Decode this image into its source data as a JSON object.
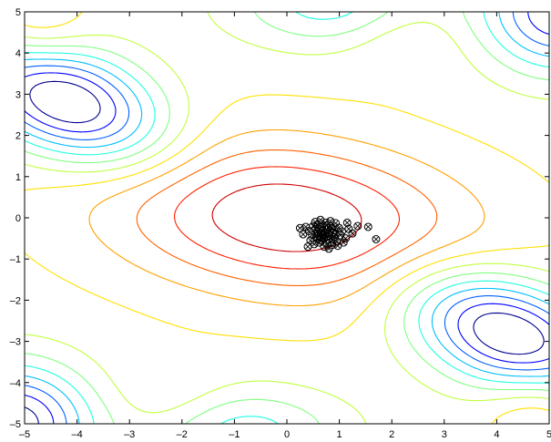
{
  "chart_data": {
    "type": "contour",
    "title": "",
    "xlabel": "",
    "ylabel": "",
    "xlim": [
      -5,
      5
    ],
    "ylim": [
      -5,
      5
    ],
    "grid": false,
    "x_ticks": [
      "-5",
      "-4",
      "-3",
      "-2",
      "-1",
      "0",
      "1",
      "2",
      "3",
      "4",
      "5"
    ],
    "y_ticks": [
      "5",
      "4",
      "3",
      "2",
      "1",
      "0",
      "-1",
      "-2",
      "-3",
      "-4",
      "-5"
    ],
    "x_tick_values": [
      -5,
      -4,
      -3,
      -2,
      -1,
      0,
      1,
      2,
      3,
      4,
      5
    ],
    "y_tick_values": [
      5,
      4,
      3,
      2,
      1,
      0,
      -1,
      -2,
      -3,
      -4,
      -5
    ],
    "contour_levels": [
      -2.0,
      -1.7,
      -1.4,
      -1.1,
      -0.8,
      -0.5,
      -0.2,
      0.1,
      0.4,
      0.7,
      1.0,
      1.3,
      1.6
    ],
    "colormap": [
      "#00008f",
      "#0000ff",
      "#0060ff",
      "#00bfff",
      "#20ffdf",
      "#80ff80",
      "#c0ff40",
      "#ffe000",
      "#ffa000",
      "#ff6000",
      "#ff2000",
      "#d00000",
      "#800000"
    ],
    "samples": {
      "marker": "circle-x",
      "color": "#000000",
      "points": [
        [
          0.72,
          -0.39
        ],
        [
          0.55,
          -0.28
        ],
        [
          0.91,
          -0.47
        ],
        [
          0.63,
          -0.55
        ],
        [
          0.84,
          -0.21
        ],
        [
          0.48,
          -0.41
        ],
        [
          1.05,
          -0.33
        ],
        [
          0.77,
          -0.62
        ],
        [
          0.59,
          -0.17
        ],
        [
          0.95,
          -0.58
        ],
        [
          0.68,
          -0.3
        ],
        [
          0.81,
          -0.44
        ],
        [
          0.42,
          -0.32
        ],
        [
          1.12,
          -0.5
        ],
        [
          0.73,
          -0.12
        ],
        [
          0.52,
          -0.64
        ],
        [
          0.88,
          -0.36
        ],
        [
          0.66,
          -0.48
        ],
        [
          0.99,
          -0.24
        ],
        [
          0.6,
          -0.37
        ],
        [
          0.79,
          -0.53
        ],
        [
          0.36,
          -0.22
        ],
        [
          1.18,
          -0.27
        ],
        [
          0.71,
          -0.7
        ],
        [
          0.56,
          -0.46
        ],
        [
          0.93,
          -0.13
        ],
        [
          0.75,
          -0.28
        ],
        [
          0.45,
          -0.55
        ],
        [
          1.02,
          -0.42
        ],
        [
          0.64,
          -0.05
        ],
        [
          0.86,
          -0.66
        ],
        [
          0.58,
          -0.34
        ],
        [
          0.9,
          -0.3
        ],
        [
          0.69,
          -0.42
        ],
        [
          0.31,
          -0.4
        ],
        [
          1.25,
          -0.38
        ],
        [
          0.76,
          -0.18
        ],
        [
          0.5,
          -0.2
        ],
        [
          0.97,
          -0.68
        ],
        [
          0.62,
          -0.6
        ],
        [
          0.83,
          -0.08
        ],
        [
          0.7,
          -0.5
        ],
        [
          1.35,
          -0.2
        ],
        [
          0.25,
          -0.25
        ],
        [
          0.8,
          -0.75
        ],
        [
          0.54,
          -0.1
        ],
        [
          1.08,
          -0.6
        ],
        [
          0.67,
          -0.22
        ],
        [
          0.87,
          -0.52
        ],
        [
          0.74,
          -0.35
        ],
        [
          1.7,
          -0.52
        ],
        [
          1.55,
          -0.22
        ],
        [
          0.4,
          -0.7
        ],
        [
          1.15,
          -0.12
        ],
        [
          0.92,
          -0.4
        ],
        [
          0.61,
          -0.27
        ],
        [
          0.78,
          -0.46
        ],
        [
          0.85,
          -0.26
        ],
        [
          0.65,
          -0.38
        ],
        [
          0.57,
          -0.5
        ]
      ]
    }
  }
}
